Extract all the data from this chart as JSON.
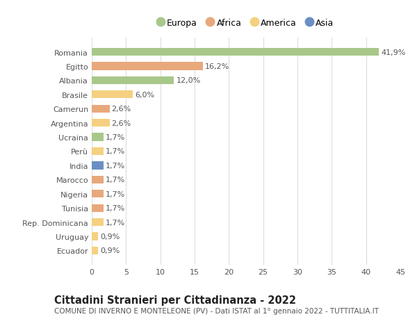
{
  "countries": [
    "Romania",
    "Egitto",
    "Albania",
    "Brasile",
    "Camerun",
    "Argentina",
    "Ucraina",
    "Perù",
    "India",
    "Marocco",
    "Nigeria",
    "Tunisia",
    "Rep. Dominicana",
    "Uruguay",
    "Ecuador"
  ],
  "values": [
    41.9,
    16.2,
    12.0,
    6.0,
    2.6,
    2.6,
    1.7,
    1.7,
    1.7,
    1.7,
    1.7,
    1.7,
    1.7,
    0.9,
    0.9
  ],
  "labels": [
    "41,9%",
    "16,2%",
    "12,0%",
    "6,0%",
    "2,6%",
    "2,6%",
    "1,7%",
    "1,7%",
    "1,7%",
    "1,7%",
    "1,7%",
    "1,7%",
    "1,7%",
    "0,9%",
    "0,9%"
  ],
  "continents": [
    "Europa",
    "Africa",
    "Europa",
    "America",
    "Africa",
    "America",
    "Europa",
    "America",
    "Asia",
    "Africa",
    "Africa",
    "Africa",
    "America",
    "America",
    "America"
  ],
  "continent_colors": {
    "Europa": "#a8c88a",
    "Africa": "#e8a87c",
    "America": "#f5d080",
    "Asia": "#6b8fc4"
  },
  "legend_order": [
    "Europa",
    "Africa",
    "America",
    "Asia"
  ],
  "title": "Cittadini Stranieri per Cittadinanza - 2022",
  "subtitle": "COMUNE DI INVERNO E MONTELEONE (PV) - Dati ISTAT al 1° gennaio 2022 - TUTTITALIA.IT",
  "xlim": [
    0,
    45
  ],
  "xticks": [
    0,
    5,
    10,
    15,
    20,
    25,
    30,
    35,
    40,
    45
  ],
  "background_color": "#ffffff",
  "grid_color": "#dddddd",
  "bar_height": 0.55,
  "label_fontsize": 8,
  "tick_fontsize": 8,
  "title_fontsize": 10.5,
  "subtitle_fontsize": 7.5
}
